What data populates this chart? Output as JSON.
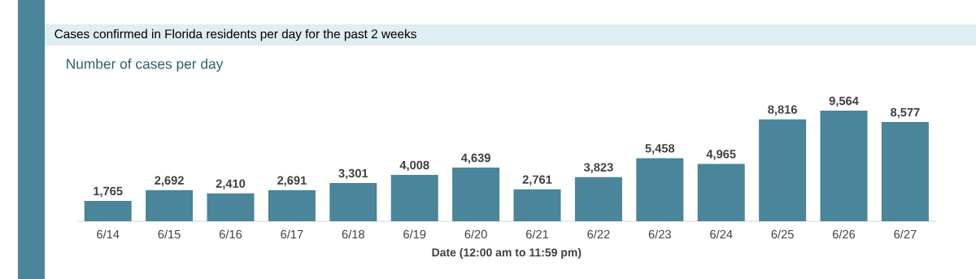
{
  "chart_data": {
    "type": "bar",
    "title": "Cases confirmed in Florida residents per day for the past 2 weeks",
    "subtitle": "Number of cases per day",
    "xlabel": "Date (12:00 am to 11:59 pm)",
    "categories": [
      "6/14",
      "6/15",
      "6/16",
      "6/17",
      "6/18",
      "6/19",
      "6/20",
      "6/21",
      "6/22",
      "6/23",
      "6/24",
      "6/25",
      "6/26",
      "6/27"
    ],
    "values": [
      1765,
      2692,
      2410,
      2691,
      3301,
      4008,
      4639,
      2761,
      3823,
      5458,
      4965,
      8816,
      9564,
      8577
    ],
    "value_labels": [
      "1,765",
      "2,692",
      "2,410",
      "2,691",
      "3,301",
      "4,008",
      "4,639",
      "2,761",
      "3,823",
      "5,458",
      "4,965",
      "8,816",
      "9,564",
      "8,577"
    ],
    "color": "#4a8599"
  }
}
